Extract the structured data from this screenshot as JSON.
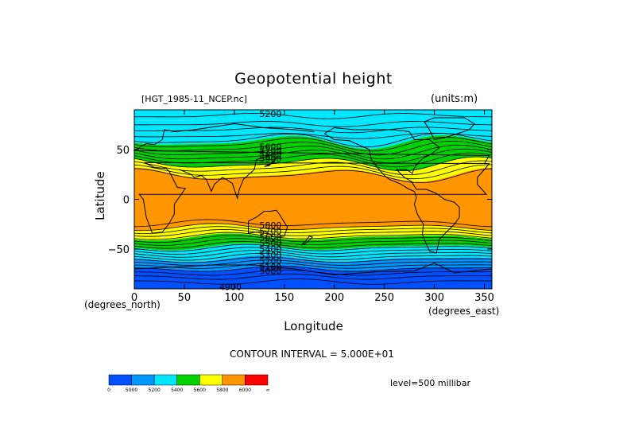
{
  "chart_data": {
    "type": "heatmap",
    "title": "Geopotential height",
    "source_label": "[HGT_1985-11_NCEP.nc]",
    "units_label": "(units:m)",
    "xlabel": "Longitude",
    "x_units_label": "(degrees_east)",
    "ylabel": "Latitude",
    "y_units_label": "(degrees_north)",
    "xlim": [
      0,
      357.5
    ],
    "ylim": [
      -90,
      90
    ],
    "x_ticks": [
      "0",
      "50",
      "100",
      "150",
      "200",
      "250",
      "300",
      "350"
    ],
    "y_ticks": [
      "50",
      "0",
      "−50"
    ],
    "contour_interval_label": "CONTOUR INTERVAL = 5.000E+01",
    "level_label": "level=500 millibar",
    "contour_labels": [
      "5200",
      "5600",
      "5700",
      "5800",
      "5900",
      "5800",
      "5700",
      "5600",
      "5500",
      "5400",
      "5300",
      "5200",
      "5100",
      "5000",
      "4900"
    ],
    "colorbar": {
      "colors": [
        "#0050ff",
        "#0096ff",
        "#00e6ff",
        "#00d200",
        "#ffff00",
        "#ff9600",
        "#ff0000"
      ],
      "labels": [
        "0",
        "5000",
        "5200",
        "5400",
        "5600",
        "5800",
        "6000",
        "∞"
      ]
    },
    "bands": [
      {
        "lat": [
          80,
          90
        ],
        "color": "#00e6ff"
      },
      {
        "lat": [
          58,
          80
        ],
        "color": "#00e6ff"
      },
      {
        "lat": [
          52,
          58
        ],
        "color": "#00d200"
      },
      {
        "lat": [
          36,
          52
        ],
        "color": "#00d200"
      },
      {
        "lat": [
          25,
          36
        ],
        "color": "#ffff00"
      },
      {
        "lat": [
          -28,
          25
        ],
        "color": "#ff9600"
      },
      {
        "lat": [
          -38,
          -28
        ],
        "color": "#ffff00"
      },
      {
        "lat": [
          -48,
          -38
        ],
        "color": "#00d200"
      },
      {
        "lat": [
          -60,
          -48
        ],
        "color": "#00e6ff"
      },
      {
        "lat": [
          -70,
          -60
        ],
        "color": "#0096ff"
      },
      {
        "lat": [
          -90,
          -70
        ],
        "color": "#0050ff"
      }
    ],
    "grid": false,
    "legend": "bottom-left colorbar"
  }
}
